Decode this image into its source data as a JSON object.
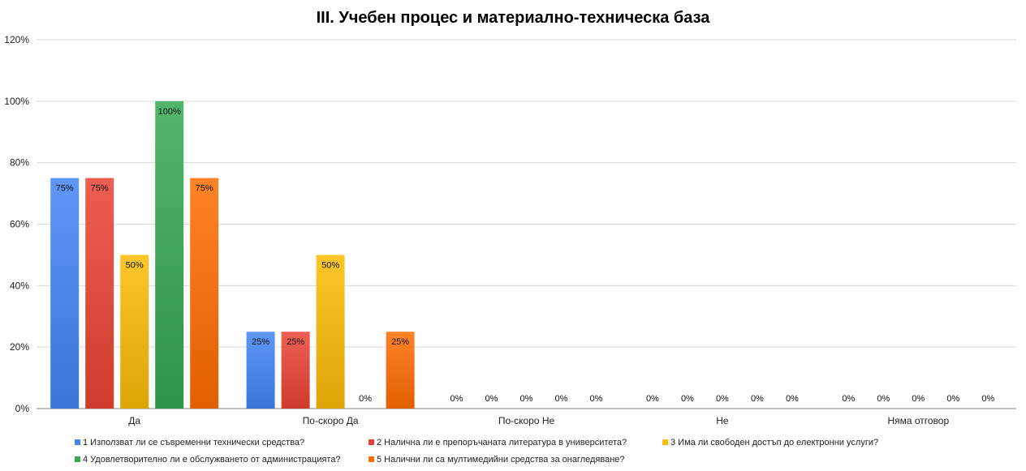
{
  "chart_data": {
    "type": "bar",
    "title": "III. Учебен процес и материално-техническа база",
    "xlabel": "",
    "ylabel": "",
    "ylim": [
      0,
      120
    ],
    "y_ticks": [
      "0%",
      "20%",
      "40%",
      "60%",
      "80%",
      "100%",
      "120%"
    ],
    "y_tick_values": [
      0,
      20,
      40,
      60,
      80,
      100,
      120
    ],
    "grid": true,
    "legend_position": "bottom",
    "categories": [
      "Да",
      "По-скоро Да",
      "По-скоро Не",
      "Не",
      "Няма отговор"
    ],
    "series": [
      {
        "name": "1 Използват ли се съвременни технически средства?",
        "color": "#4285f4",
        "values": [
          75,
          25,
          0,
          0,
          0
        ],
        "labels": [
          "75%",
          "25%",
          "0%",
          "0%",
          "0%"
        ]
      },
      {
        "name": "2 Налична ли е препоръчаната литература в университета?",
        "color": "#ea4335",
        "values": [
          75,
          25,
          0,
          0,
          0
        ],
        "labels": [
          "75%",
          "25%",
          "0%",
          "0%",
          "0%"
        ]
      },
      {
        "name": "3 Има ли свободен достъп до електронни услуги?",
        "color": "#fbbc04",
        "values": [
          50,
          50,
          0,
          0,
          0
        ],
        "labels": [
          "50%",
          "50%",
          "0%",
          "0%",
          "0%"
        ]
      },
      {
        "name": "4 Удовлетворително ли е обслужването от администрацията?",
        "color": "#34a853",
        "values": [
          100,
          0,
          0,
          0,
          0
        ],
        "labels": [
          "100%",
          "0%",
          "0%",
          "0%",
          "0%"
        ]
      },
      {
        "name": "5 Налични ли са мултимедийни средства за онагледяване?",
        "color": "#ff6d01",
        "values": [
          75,
          25,
          0,
          0,
          0
        ],
        "labels": [
          "75%",
          "25%",
          "0%",
          "0%",
          "0%"
        ]
      }
    ]
  }
}
